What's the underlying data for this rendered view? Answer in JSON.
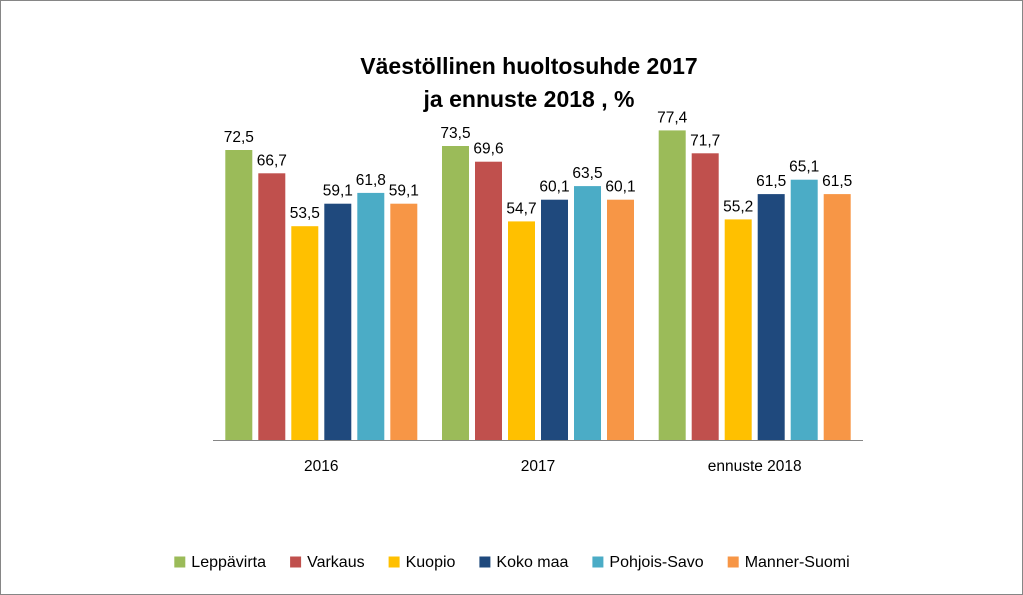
{
  "chart_data": {
    "type": "bar",
    "title_lines": [
      "Väestöllinen huoltosuhde 2017",
      "ja ennuste 2018 , %"
    ],
    "categories": [
      "2016",
      "2017",
      "ennuste 2018"
    ],
    "series": [
      {
        "name": "Leppävirta",
        "color": "#9BBB59",
        "values": [
          72.5,
          73.5,
          77.4
        ],
        "labels": [
          "72,5",
          "73,5",
          "77,4"
        ]
      },
      {
        "name": "Varkaus",
        "color": "#C0504D",
        "values": [
          66.7,
          69.6,
          71.7
        ],
        "labels": [
          "66,7",
          "69,6",
          "71,7"
        ]
      },
      {
        "name": "Kuopio",
        "color": "#FFC000",
        "values": [
          53.5,
          54.7,
          55.2
        ],
        "labels": [
          "53,5",
          "54,7",
          "55,2"
        ]
      },
      {
        "name": "Koko maa",
        "color": "#1F497D",
        "values": [
          59.1,
          60.1,
          61.5
        ],
        "labels": [
          "59,1",
          "60,1",
          "61,5"
        ]
      },
      {
        "name": "Pohjois-Savo",
        "color": "#4BACC6",
        "values": [
          61.8,
          63.5,
          65.1
        ],
        "labels": [
          "61,8",
          "63,5",
          "65,1"
        ]
      },
      {
        "name": "Manner-Suomi",
        "color": "#F79646",
        "values": [
          59.1,
          60.1,
          61.5
        ],
        "labels": [
          "59,1",
          "60,1",
          "61,5"
        ]
      }
    ],
    "ylim": [
      0,
      80
    ],
    "xlabel": "",
    "ylabel": "",
    "grid": false,
    "legend_position": "bottom"
  }
}
